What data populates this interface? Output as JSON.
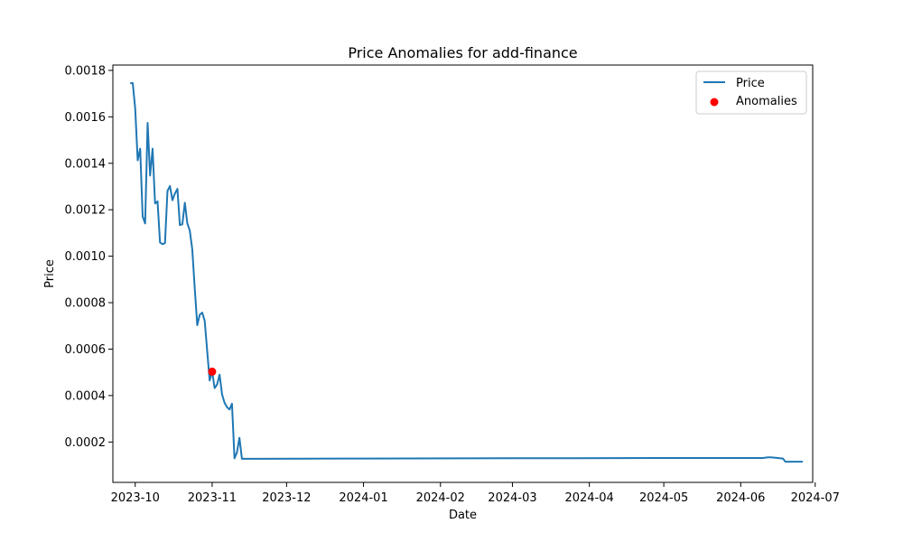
{
  "chart_data": {
    "type": "line",
    "title": "Price Anomalies for add-finance",
    "xlabel": "Date",
    "ylabel": "Price",
    "xlim": [
      "2023-09-22",
      "2024-06-30"
    ],
    "ylim": [
      2.62e-05,
      0.001823
    ],
    "x_ticks": [
      "2023-10-01",
      "2023-11-01",
      "2023-12-01",
      "2024-01-01",
      "2024-02-01",
      "2024-03-01",
      "2024-04-01",
      "2024-05-01",
      "2024-06-01",
      "2024-07-01"
    ],
    "x_tick_labels": [
      "2023-10",
      "2023-11",
      "2023-12",
      "2024-01",
      "2024-02",
      "2024-03",
      "2024-04",
      "2024-05",
      "2024-06",
      "2024-07"
    ],
    "y_ticks": [
      0.0002,
      0.0004,
      0.0006,
      0.0008,
      0.001,
      0.0012,
      0.0014,
      0.0016,
      0.0018
    ],
    "y_tick_labels": [
      "0.0002",
      "0.0004",
      "0.0006",
      "0.0008",
      "0.0010",
      "0.0012",
      "0.0014",
      "0.0016",
      "0.0018"
    ],
    "grid": false,
    "legend_position": "top-right",
    "series": [
      {
        "name": "Price",
        "type": "line",
        "color": "#1f77b4",
        "points": [
          [
            "2023-09-29",
            0.001745
          ],
          [
            "2023-09-30",
            0.001745
          ],
          [
            "2023-10-01",
            0.001636
          ],
          [
            "2023-10-02",
            0.001413
          ],
          [
            "2023-10-03",
            0.001463
          ],
          [
            "2023-10-04",
            0.001171
          ],
          [
            "2023-10-05",
            0.001141
          ],
          [
            "2023-10-06",
            0.001574
          ],
          [
            "2023-10-07",
            0.001347
          ],
          [
            "2023-10-08",
            0.001463
          ],
          [
            "2023-10-09",
            0.001227
          ],
          [
            "2023-10-10",
            0.001236
          ],
          [
            "2023-10-11",
            0.001059
          ],
          [
            "2023-10-12",
            0.001052
          ],
          [
            "2023-10-13",
            0.001056
          ],
          [
            "2023-10-14",
            0.001281
          ],
          [
            "2023-10-15",
            0.001302
          ],
          [
            "2023-10-16",
            0.001241
          ],
          [
            "2023-10-17",
            0.00127
          ],
          [
            "2023-10-18",
            0.00129
          ],
          [
            "2023-10-19",
            0.001134
          ],
          [
            "2023-10-20",
            0.001138
          ],
          [
            "2023-10-21",
            0.00123
          ],
          [
            "2023-10-22",
            0.001141
          ],
          [
            "2023-10-23",
            0.00111
          ],
          [
            "2023-10-24",
            0.001029
          ],
          [
            "2023-10-25",
            0.00086
          ],
          [
            "2023-10-26",
            0.000703
          ],
          [
            "2023-10-27",
            0.000748
          ],
          [
            "2023-10-28",
            0.000757
          ],
          [
            "2023-10-29",
            0.000722
          ],
          [
            "2023-10-30",
            0.000593
          ],
          [
            "2023-10-31",
            0.000465
          ],
          [
            "2023-11-01",
            0.000503
          ],
          [
            "2023-11-02",
            0.000432
          ],
          [
            "2023-11-03",
            0.000448
          ],
          [
            "2023-11-04",
            0.00049
          ],
          [
            "2023-11-05",
            0.000405
          ],
          [
            "2023-11-06",
            0.000369
          ],
          [
            "2023-11-07",
            0.00035
          ],
          [
            "2023-11-08",
            0.00034
          ],
          [
            "2023-11-09",
            0.000365
          ],
          [
            "2023-11-10",
            0.00013
          ],
          [
            "2023-11-11",
            0.000155
          ],
          [
            "2023-11-12",
            0.000218
          ],
          [
            "2023-11-13",
            0.000128
          ],
          [
            "2023-11-20",
            0.000128
          ],
          [
            "2024-01-01",
            0.000129
          ],
          [
            "2024-03-01",
            0.00013
          ],
          [
            "2024-05-01",
            0.000131
          ],
          [
            "2024-06-10",
            0.000131
          ],
          [
            "2024-06-12",
            0.000134
          ],
          [
            "2024-06-13",
            0.000134
          ],
          [
            "2024-06-15",
            0.000132
          ],
          [
            "2024-06-18",
            0.000129
          ],
          [
            "2024-06-19",
            0.000115
          ],
          [
            "2024-06-26",
            0.000115
          ]
        ]
      },
      {
        "name": "Anomalies",
        "type": "scatter",
        "color": "#ff0000",
        "points": [
          [
            "2023-11-01",
            0.000503
          ]
        ]
      }
    ]
  }
}
